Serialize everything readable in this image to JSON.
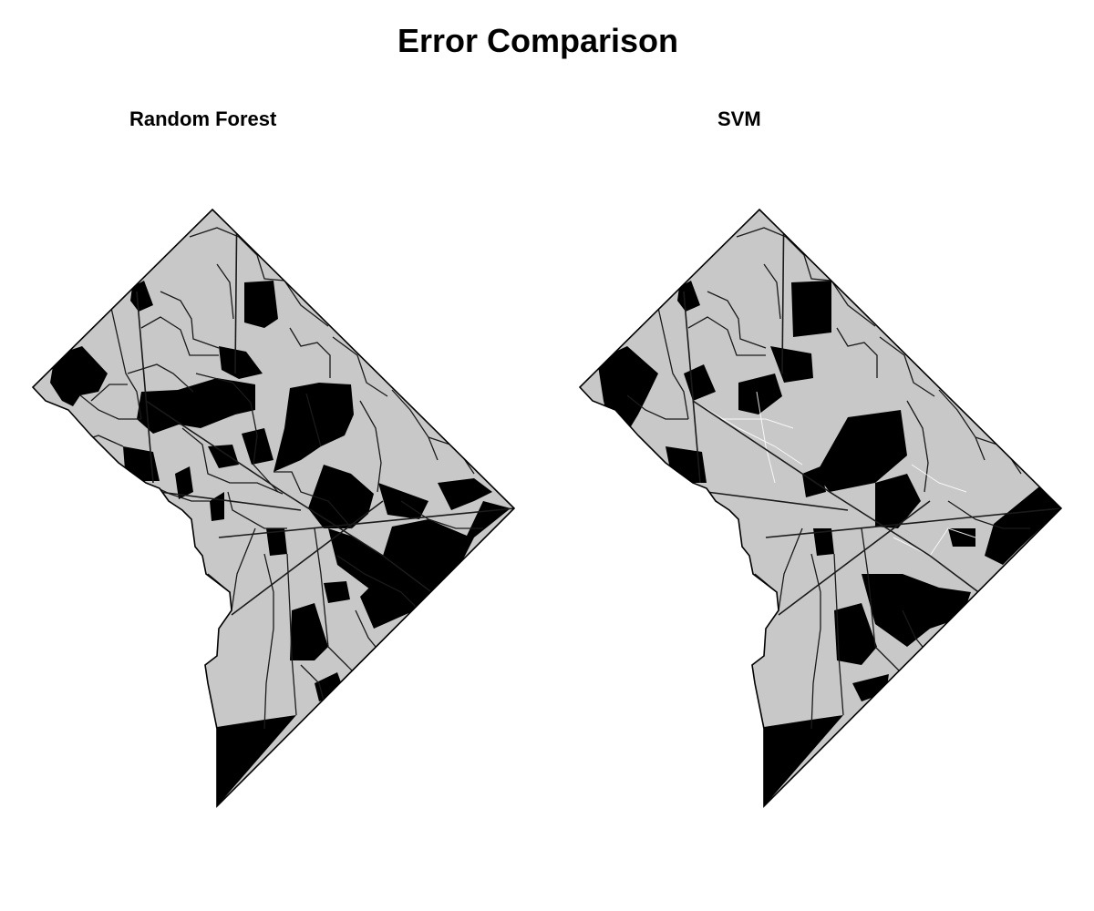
{
  "title": "Error Comparison",
  "panels": [
    {
      "id": "random-forest",
      "label": "Random Forest"
    },
    {
      "id": "svm",
      "label": "SVM"
    }
  ],
  "legend_colors": {
    "correct": "#c8c8c8",
    "error": "#000000",
    "boundary": "#1a1a1a",
    "background": "#ffffff"
  }
}
